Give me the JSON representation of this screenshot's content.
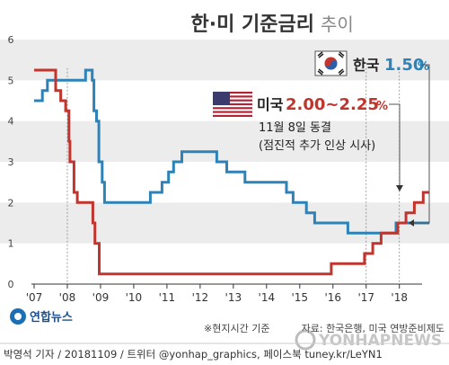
{
  "chart_data": {
    "type": "line",
    "title": "한·미 기준금리",
    "title_suffix": "추이",
    "ylim": [
      0,
      6
    ],
    "yticks": [
      0,
      1,
      2,
      3,
      4,
      5,
      6
    ],
    "xlim": [
      2007.0,
      2018.9
    ],
    "x_tick_labels": [
      {
        "x": 2007.0,
        "label": "'07"
      },
      {
        "x": 2008.0,
        "label": "'08"
      },
      {
        "x": 2009.0,
        "label": "'09"
      },
      {
        "x": 2010.0,
        "label": "'10"
      },
      {
        "x": 2011.0,
        "label": "'11"
      },
      {
        "x": 2012.0,
        "label": "'12"
      },
      {
        "x": 2013.0,
        "label": "'13"
      },
      {
        "x": 2014.0,
        "label": "'14"
      },
      {
        "x": 2015.0,
        "label": "'15"
      },
      {
        "x": 2016.0,
        "label": "'16"
      },
      {
        "x": 2017.0,
        "label": "'17"
      },
      {
        "x": 2018.0,
        "label": "'18"
      }
    ],
    "grid_bands": true,
    "series": [
      {
        "name": "한국",
        "color": "#2d83b8",
        "points": [
          [
            2007.0,
            4.5
          ],
          [
            2007.25,
            4.5
          ],
          [
            2007.25,
            4.75
          ],
          [
            2007.4,
            4.75
          ],
          [
            2007.4,
            5.0
          ],
          [
            2008.55,
            5.0
          ],
          [
            2008.55,
            5.25
          ],
          [
            2008.75,
            5.25
          ],
          [
            2008.75,
            5.0
          ],
          [
            2008.8,
            5.0
          ],
          [
            2008.8,
            4.25
          ],
          [
            2008.88,
            4.25
          ],
          [
            2008.88,
            4.0
          ],
          [
            2008.95,
            4.0
          ],
          [
            2008.95,
            3.0
          ],
          [
            2009.05,
            3.0
          ],
          [
            2009.05,
            2.5
          ],
          [
            2009.12,
            2.5
          ],
          [
            2009.12,
            2.0
          ],
          [
            2010.5,
            2.0
          ],
          [
            2010.5,
            2.25
          ],
          [
            2010.85,
            2.25
          ],
          [
            2010.85,
            2.5
          ],
          [
            2011.05,
            2.5
          ],
          [
            2011.05,
            2.75
          ],
          [
            2011.2,
            2.75
          ],
          [
            2011.2,
            3.0
          ],
          [
            2011.45,
            3.0
          ],
          [
            2011.45,
            3.25
          ],
          [
            2012.5,
            3.25
          ],
          [
            2012.5,
            3.0
          ],
          [
            2012.8,
            3.0
          ],
          [
            2012.8,
            2.75
          ],
          [
            2013.35,
            2.75
          ],
          [
            2013.35,
            2.5
          ],
          [
            2014.6,
            2.5
          ],
          [
            2014.6,
            2.25
          ],
          [
            2014.8,
            2.25
          ],
          [
            2014.8,
            2.0
          ],
          [
            2015.2,
            2.0
          ],
          [
            2015.2,
            1.75
          ],
          [
            2015.45,
            1.75
          ],
          [
            2015.45,
            1.5
          ],
          [
            2016.45,
            1.5
          ],
          [
            2016.45,
            1.25
          ],
          [
            2017.9,
            1.25
          ],
          [
            2017.9,
            1.5
          ],
          [
            2018.9,
            1.5
          ]
        ]
      },
      {
        "name": "미국",
        "color": "#c0352d",
        "points": [
          [
            2007.0,
            5.25
          ],
          [
            2007.65,
            5.25
          ],
          [
            2007.65,
            4.75
          ],
          [
            2007.8,
            4.75
          ],
          [
            2007.8,
            4.5
          ],
          [
            2007.95,
            4.5
          ],
          [
            2007.95,
            4.25
          ],
          [
            2008.05,
            4.25
          ],
          [
            2008.05,
            3.5
          ],
          [
            2008.08,
            3.5
          ],
          [
            2008.08,
            3.0
          ],
          [
            2008.2,
            3.0
          ],
          [
            2008.2,
            2.25
          ],
          [
            2008.3,
            2.25
          ],
          [
            2008.3,
            2.0
          ],
          [
            2008.77,
            2.0
          ],
          [
            2008.77,
            1.5
          ],
          [
            2008.83,
            1.5
          ],
          [
            2008.83,
            1.0
          ],
          [
            2008.96,
            1.0
          ],
          [
            2008.96,
            0.25
          ],
          [
            2015.95,
            0.25
          ],
          [
            2015.95,
            0.5
          ],
          [
            2016.95,
            0.5
          ],
          [
            2016.95,
            0.75
          ],
          [
            2017.2,
            0.75
          ],
          [
            2017.2,
            1.0
          ],
          [
            2017.45,
            1.0
          ],
          [
            2017.45,
            1.25
          ],
          [
            2017.95,
            1.25
          ],
          [
            2017.95,
            1.5
          ],
          [
            2018.2,
            1.5
          ],
          [
            2018.2,
            1.75
          ],
          [
            2018.45,
            1.75
          ],
          [
            2018.45,
            2.0
          ],
          [
            2018.72,
            2.0
          ],
          [
            2018.72,
            2.25
          ],
          [
            2018.9,
            2.25
          ]
        ]
      }
    ],
    "vlines": [
      2008.0,
      2017.0,
      2018.0
    ],
    "annotations": {
      "korea_label": "한국",
      "korea_value": "1.50",
      "korea_unit": "%",
      "us_label": "미국",
      "us_value": "2.00∼2.25",
      "us_unit": "%",
      "us_note1": "11월 8일 동결",
      "us_note2": "(점진적 추가 인상 시사)"
    },
    "footnote_time": "※현지시간 기준",
    "source": "자료: 한국은행, 미국 연방준비제도"
  },
  "branding": {
    "logo_text": "연합뉴스",
    "watermark_text": "YONHAPNEWS"
  },
  "credit": "박영석 기자 / 20181109 / 트위터 @yonhap_graphics, 페이스북 tuney.kr/LeYN1",
  "colors": {
    "korea": "#2d83b8",
    "us": "#c0352d",
    "band": "#ececec",
    "title": "#333333",
    "title_suffix": "#888888"
  }
}
